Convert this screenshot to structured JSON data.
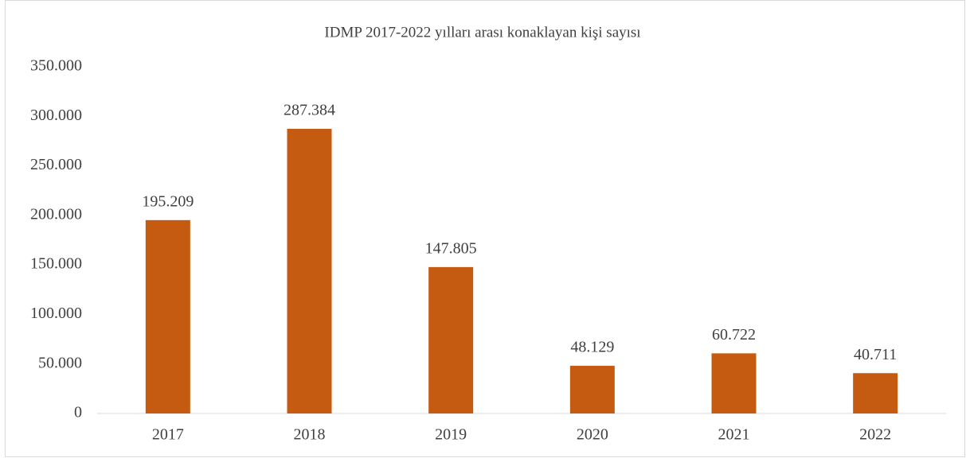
{
  "chart_data": {
    "type": "bar",
    "title": "IDMP 2017-2022 yılları arası konaklayan kişi sayısı",
    "categories": [
      "2017",
      "2018",
      "2019",
      "2020",
      "2021",
      "2022"
    ],
    "values": [
      195209,
      287384,
      147805,
      48129,
      60722,
      40711
    ],
    "value_labels": [
      "195.209",
      "287.384",
      "147.805",
      "48.129",
      "60.722",
      "40.711"
    ],
    "color": "#c55a11",
    "ylim": [
      0,
      350000
    ],
    "yticks": [
      0,
      {
        "value": 50000,
        "label": "50.000"
      },
      {
        "value": 100000,
        "label": "100.000"
      },
      {
        "value": 150000,
        "label": "150.000"
      },
      {
        "value": 200000,
        "label": "200.000"
      },
      {
        "value": 250000,
        "label": "250.000"
      },
      {
        "value": 300000,
        "label": "300.000"
      },
      {
        "value": 350000,
        "label": "350.000"
      }
    ],
    "grid": false
  }
}
